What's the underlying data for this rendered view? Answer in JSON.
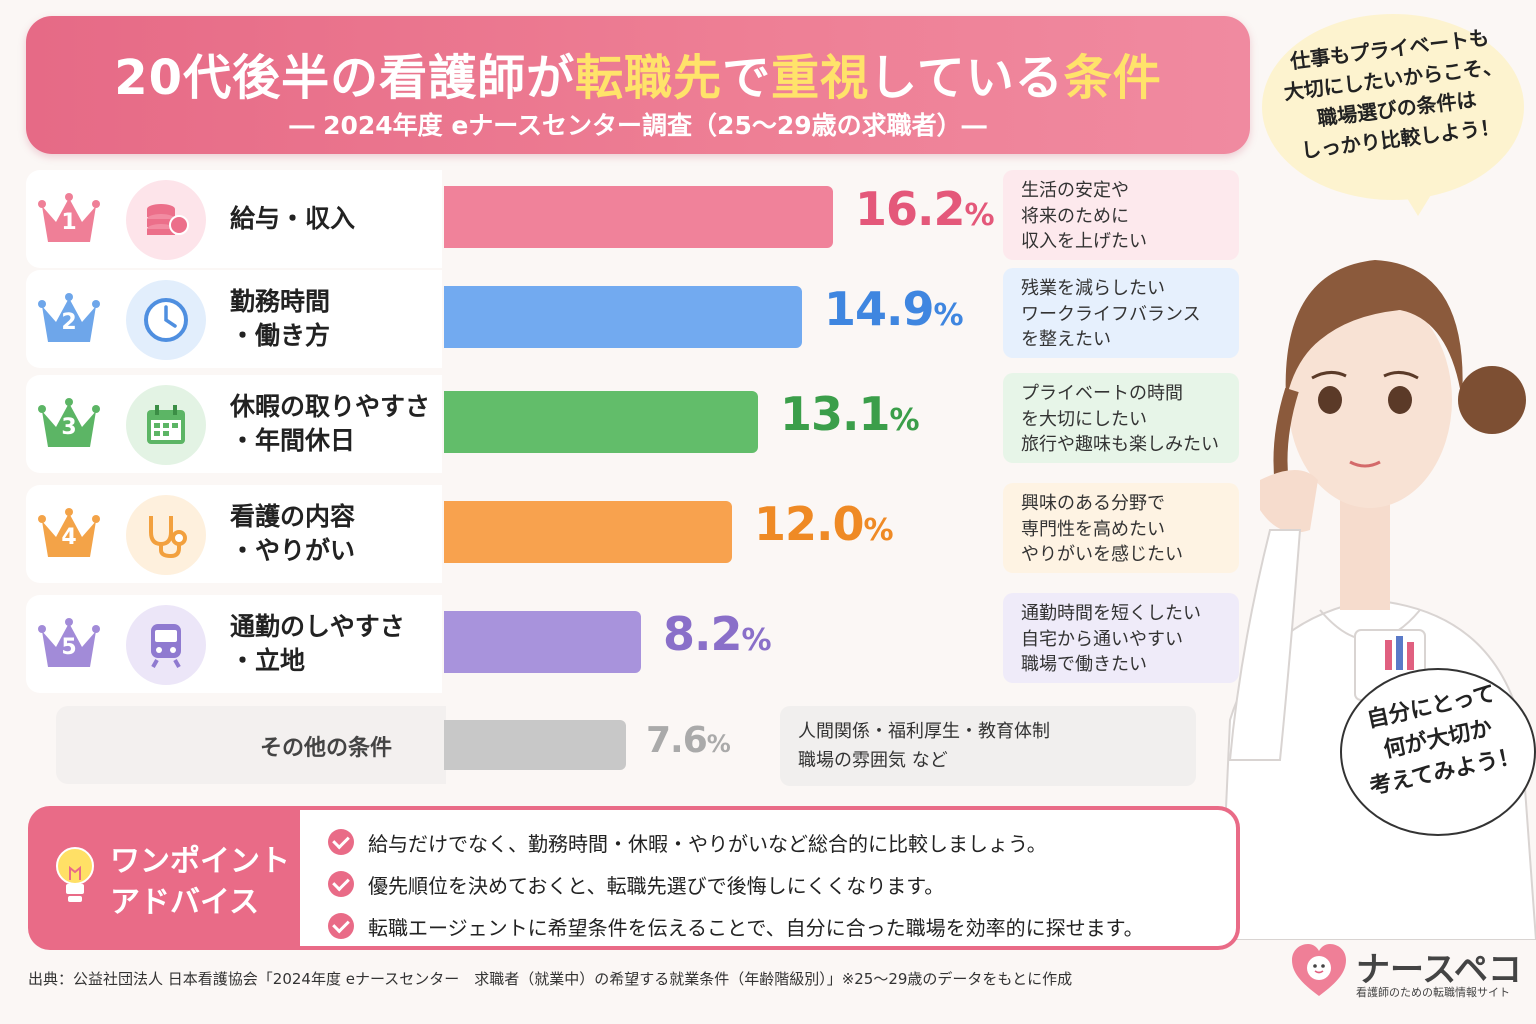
{
  "header": {
    "title_pre": "20代後半の看護師が",
    "title_hl1": "転職先",
    "title_mid": "で",
    "title_hl2": "重視",
    "title_post": "している",
    "title_hl3": "条件",
    "subtitle": "― 2024年度 eナースセンター調査（25〜29歳の求職者）―"
  },
  "chart_data": {
    "type": "bar",
    "orientation": "horizontal",
    "unit": "%",
    "xlim": [
      0,
      20
    ],
    "categories": [
      {
        "rank": "1",
        "line1": "給与・収入",
        "line2": "",
        "value": 16.2,
        "value_label": "16.2",
        "note": [
          "生活の安定や",
          "将来のために",
          "収入を上げたい"
        ]
      },
      {
        "rank": "2",
        "line1": "勤務時間",
        "line2": "・働き方",
        "value": 14.9,
        "value_label": "14.9",
        "note": [
          "残業を減らしたい",
          "ワークライフバランス",
          "を整えたい"
        ]
      },
      {
        "rank": "3",
        "line1": "休暇の取りやすさ",
        "line2": "・年間休日",
        "value": 13.1,
        "value_label": "13.1",
        "note": [
          "プライベートの時間",
          "を大切にしたい",
          "旅行や趣味も楽しみたい"
        ]
      },
      {
        "rank": "4",
        "line1": "看護の内容",
        "line2": "・やりがい",
        "value": 12.0,
        "value_label": "12.0",
        "note": [
          "興味のある分野で",
          "専門性を高めたい",
          "やりがいを感じたい"
        ]
      },
      {
        "rank": "5",
        "line1": "通勤のしやすさ",
        "line2": "・立地",
        "value": 8.2,
        "value_label": "8.2",
        "note": [
          "通勤時間を短くしたい",
          "自宅から通いやすい",
          "職場で働きたい"
        ]
      }
    ],
    "other": {
      "label": "その他の条件",
      "value": 7.6,
      "value_label": "7.6",
      "note": [
        "人間関係・福利厚生・教育体制",
        "職場の雰囲気 など"
      ]
    },
    "pct_symbol": "%"
  },
  "colors": {
    "bars": [
      "#f0829a",
      "#72aaf0",
      "#62bd6a",
      "#f8a24e",
      "#a893dc",
      "#c8c8c8"
    ],
    "pct": [
      "#e4587a",
      "#3f86e0",
      "#3b9e4a",
      "#ef8a25",
      "#8a6fc9",
      "#aaaaaa"
    ],
    "crowns": [
      "#ef7f97",
      "#6ea6ea",
      "#5cb565",
      "#f3a348",
      "#a28bd8"
    ],
    "icon_bg": [
      "#fde4ea",
      "#e2eefc",
      "#e3f3e4",
      "#fef0dd",
      "#ece6f8"
    ],
    "notes": [
      "#fde9ed",
      "#e6f0fd",
      "#e7f5e8",
      "#fef3e3",
      "#efebf9"
    ]
  },
  "icons": [
    "coins-icon",
    "clock-icon",
    "calendar-icon",
    "stethoscope-icon",
    "train-icon"
  ],
  "advice": {
    "title1": "ワンポイント",
    "title2": "アドバイス",
    "tips": [
      "給与だけでなく、勤務時間・休暇・やりがいなど総合的に比較しましょう。",
      "優先順位を決めておくと、転職先選びで後悔しにくくなります。",
      "転職エージェントに希望条件を伝えることで、自分に合った職場を効率的に探せます。"
    ]
  },
  "source": "出典：公益社団法人 日本看護協会「2024年度 eナースセンター　求職者（就業中）の希望する就業条件（年齢階級別）」※25〜29歳のデータをもとに作成",
  "bubble": [
    "仕事もプライベートも",
    "大切にしたいからこそ、",
    "職場選びの条件は",
    "しっかり比較しよう！"
  ],
  "bubble2": [
    "自分にとって",
    "何が大切か",
    "考えてみよう！"
  ],
  "logo": {
    "name": "ナースペコ",
    "tagline": "看護師のための転職情報サイト"
  }
}
